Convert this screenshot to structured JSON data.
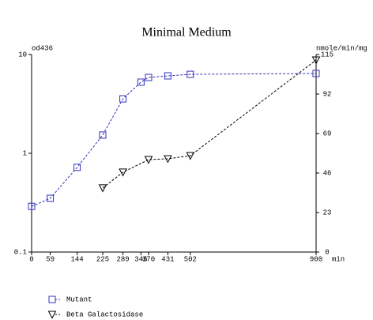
{
  "chart_data": {
    "type": "line",
    "title": "Minimal Medium",
    "y_label": "od436",
    "y2_label": "nmole/min/mg",
    "x_label": "min",
    "xlim": [
      0,
      900
    ],
    "xticks": [
      0,
      59,
      144,
      225,
      289,
      346,
      370,
      431,
      502,
      900
    ],
    "ylim": [
      0.1,
      10
    ],
    "yticks": [
      0.1,
      1,
      10
    ],
    "ylog": true,
    "y2lim": [
      0,
      115
    ],
    "y2ticks": [
      0,
      23,
      46,
      69,
      92,
      115
    ],
    "grid": false,
    "legend": "bottom",
    "series": [
      {
        "name": "Mutant",
        "color": "#3030c0",
        "marker": "square",
        "x": [
          0,
          59,
          144,
          225,
          289,
          346,
          370,
          431,
          502,
          900
        ],
        "values": [
          0.29,
          0.35,
          0.72,
          1.53,
          3.56,
          5.25,
          5.86,
          6.08,
          6.3,
          6.43
        ]
      },
      {
        "name": "Beta Galactosidase",
        "color": "#000000",
        "marker": "triangle",
        "axis": "y2",
        "x": [
          225,
          289,
          370,
          431,
          502,
          900
        ],
        "values": [
          37.3,
          46.5,
          53.8,
          54.3,
          56.1,
          111.8
        ]
      }
    ]
  }
}
